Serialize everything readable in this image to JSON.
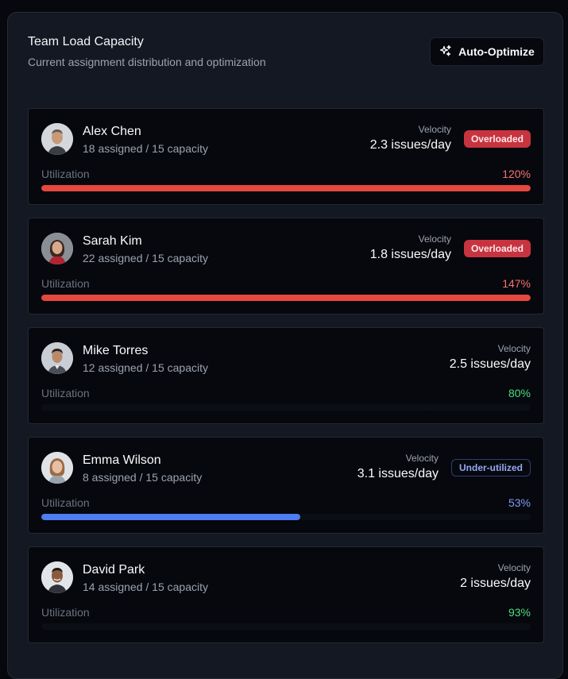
{
  "header": {
    "title": "Team Load Capacity",
    "subtitle": "Current assignment distribution and optimization"
  },
  "actions": {
    "auto_optimize_label": "Auto-Optimize",
    "icon": "sparkles-icon"
  },
  "colors": {
    "overloaded_bar": "#e5483f",
    "overloaded_pct": "#f87171",
    "healthy_bar": "#0b0e15",
    "healthy_pct": "#4ade80",
    "under_bar": "#4f7cf0",
    "under_pct": "#7c9cf6",
    "overloaded_badge_bg": "#c7343f",
    "under_badge_border": "#2f3d78"
  },
  "members": [
    {
      "name": "Alex Chen",
      "assignment": "18 assigned / 15 capacity",
      "velocity_label": "Velocity",
      "velocity": "2.3 issues/day",
      "badge": "Overloaded",
      "status": "over",
      "utilization_label": "Utilization",
      "utilization_pct": "120%",
      "utilization": 1.2
    },
    {
      "name": "Sarah Kim",
      "assignment": "22 assigned / 15 capacity",
      "velocity_label": "Velocity",
      "velocity": "1.8 issues/day",
      "badge": "Overloaded",
      "status": "over",
      "utilization_label": "Utilization",
      "utilization_pct": "147%",
      "utilization": 1.47
    },
    {
      "name": "Mike Torres",
      "assignment": "12 assigned / 15 capacity",
      "velocity_label": "Velocity",
      "velocity": "2.5 issues/day",
      "badge": "",
      "status": "ok",
      "utilization_label": "Utilization",
      "utilization_pct": "80%",
      "utilization": 0.8
    },
    {
      "name": "Emma Wilson",
      "assignment": "8 assigned / 15 capacity",
      "velocity_label": "Velocity",
      "velocity": "3.1 issues/day",
      "badge": "Under-utilized",
      "status": "under",
      "utilization_label": "Utilization",
      "utilization_pct": "53%",
      "utilization": 0.53
    },
    {
      "name": "David Park",
      "assignment": "14 assigned / 15 capacity",
      "velocity_label": "Velocity",
      "velocity": "2 issues/day",
      "badge": "",
      "status": "ok",
      "utilization_label": "Utilization",
      "utilization_pct": "93%",
      "utilization": 0.93
    }
  ]
}
